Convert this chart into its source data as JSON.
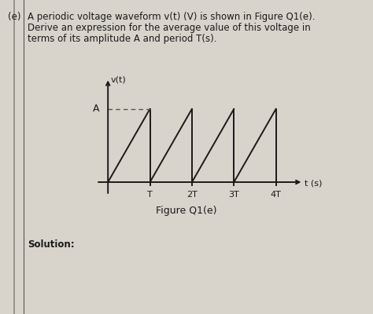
{
  "bg_color": "#d8d4cc",
  "text_color": "#1a1a1a",
  "label_fontsize": 8.5,
  "waveform_color": "#1a1a1a",
  "dashed_color": "#555555",
  "A_label": "A",
  "vt_label": "v(t)",
  "ts_label": "t (s)",
  "x_ticks": [
    "T",
    "2T",
    "3T",
    "4T"
  ],
  "x_tick_vals": [
    1,
    2,
    3,
    4
  ],
  "amplitude": 1.0,
  "num_periods": 4,
  "line1": "(e)   A periodic voltage waveform v(t) (V) is shown in Figure Q1(e).",
  "line2": "        Derive an expression for the average value of this voltage in",
  "line3": "        terms of its amplitude A and period T(s).",
  "figure_label": "Figure Q1(e)",
  "solution_label": "Solution:",
  "border_color": "#888880",
  "border2_color": "#555550"
}
